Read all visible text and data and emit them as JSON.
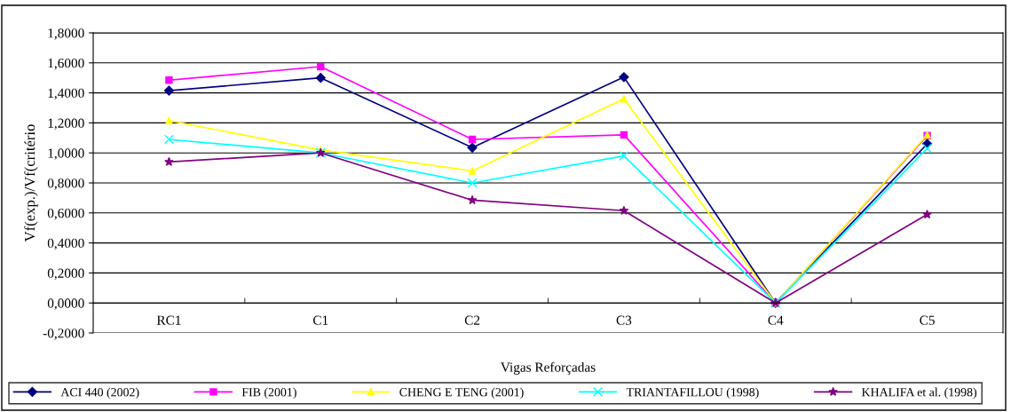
{
  "chart_data": {
    "type": "line",
    "xlabel": "Vigas Reforçadas",
    "ylabel": "Vf(exp.)/Vf(critério",
    "categories": [
      "RC1",
      "C1",
      "C2",
      "C3",
      "C4",
      "C5"
    ],
    "series": [
      {
        "name": "ACI 440 (2002)",
        "color": "#000080",
        "marker": "diamond",
        "values": [
          1.415,
          1.5,
          1.035,
          1.505,
          0,
          1.06
        ]
      },
      {
        "name": "FIB (2001)",
        "color": "#ff00ff",
        "marker": "square",
        "values": [
          1.485,
          1.575,
          1.09,
          1.12,
          0,
          1.115
        ]
      },
      {
        "name": "CHENG E TENG (2001)",
        "color": "#ffff00",
        "marker": "triangle",
        "values": [
          1.215,
          1.02,
          0.88,
          1.36,
          0,
          1.12
        ]
      },
      {
        "name": "TRIANTAFILLOU (1998)",
        "color": "#00ffff",
        "marker": "cross",
        "values": [
          1.09,
          1.0,
          0.8,
          0.98,
          0,
          1.03
        ]
      },
      {
        "name": "KHALIFA et al. (1998)",
        "color": "#800080",
        "marker": "star",
        "values": [
          0.94,
          1.0,
          0.685,
          0.615,
          0,
          0.59
        ]
      }
    ],
    "ylim": [
      -0.2,
      1.8
    ],
    "yticks": [
      {
        "value": -0.2,
        "label": "-0,2000"
      },
      {
        "value": 0,
        "label": "0,0000"
      },
      {
        "value": 0.2,
        "label": "0,2000"
      },
      {
        "value": 0.4,
        "label": "0,4000"
      },
      {
        "value": 0.6,
        "label": "0,6000"
      },
      {
        "value": 0.8,
        "label": "0,8000"
      },
      {
        "value": 1.0,
        "label": "1,0000"
      },
      {
        "value": 1.2,
        "label": "1,2000"
      },
      {
        "value": 1.4,
        "label": "1,4000"
      },
      {
        "value": 1.6,
        "label": "1,6000"
      },
      {
        "value": 1.8,
        "label": "1,8000"
      }
    ],
    "grid": "y",
    "legend": "bottom"
  }
}
